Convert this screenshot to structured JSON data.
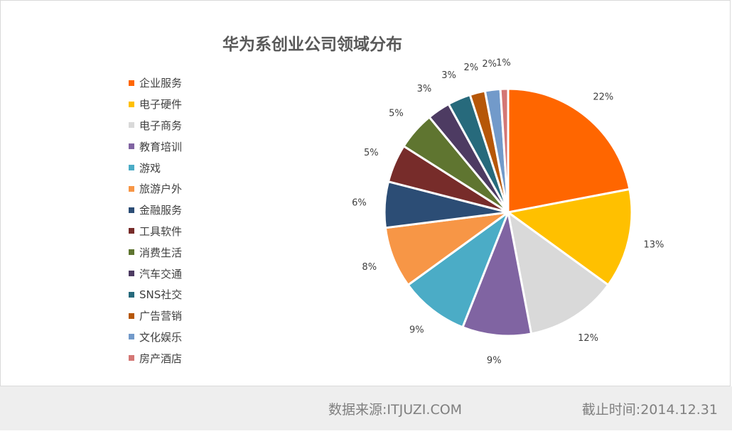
{
  "chart_data": {
    "type": "pie",
    "title": "华为系创业公司领域分布",
    "legend_position": "left",
    "slices": [
      {
        "label": "企业服务",
        "value": 22,
        "text": "22%",
        "color": "#ff6600"
      },
      {
        "label": "电子硬件",
        "value": 13,
        "text": "13%",
        "color": "#ffc000"
      },
      {
        "label": "电子商务",
        "value": 12,
        "text": "12%",
        "color": "#d9d9d9"
      },
      {
        "label": "教育培训",
        "value": 9,
        "text": "9%",
        "color": "#8064a2"
      },
      {
        "label": "游戏",
        "value": 9,
        "text": "9%",
        "color": "#4bacc6"
      },
      {
        "label": "旅游户外",
        "value": 8,
        "text": "8%",
        "color": "#f79646"
      },
      {
        "label": "金融服务",
        "value": 6,
        "text": "6%",
        "color": "#2c4d75"
      },
      {
        "label": "工具软件",
        "value": 5,
        "text": "5%",
        "color": "#772c2a"
      },
      {
        "label": "消费生活",
        "value": 5,
        "text": "5%",
        "color": "#5f7530"
      },
      {
        "label": "汽车交通",
        "value": 3,
        "text": "3%",
        "color": "#4d3b62"
      },
      {
        "label": "SNS社交",
        "value": 3,
        "text": "3%",
        "color": "#276a7c"
      },
      {
        "label": "广告营销",
        "value": 2,
        "text": "2%",
        "color": "#b65708"
      },
      {
        "label": "文化娱乐",
        "value": 2,
        "text": "2%",
        "color": "#729aca"
      },
      {
        "label": "房产酒店",
        "value": 1,
        "text": "1%",
        "color": "#d47775"
      }
    ]
  },
  "footer": {
    "source": "数据来源:ITJUZI.COM",
    "date": "截止时间:2014.12.31"
  }
}
